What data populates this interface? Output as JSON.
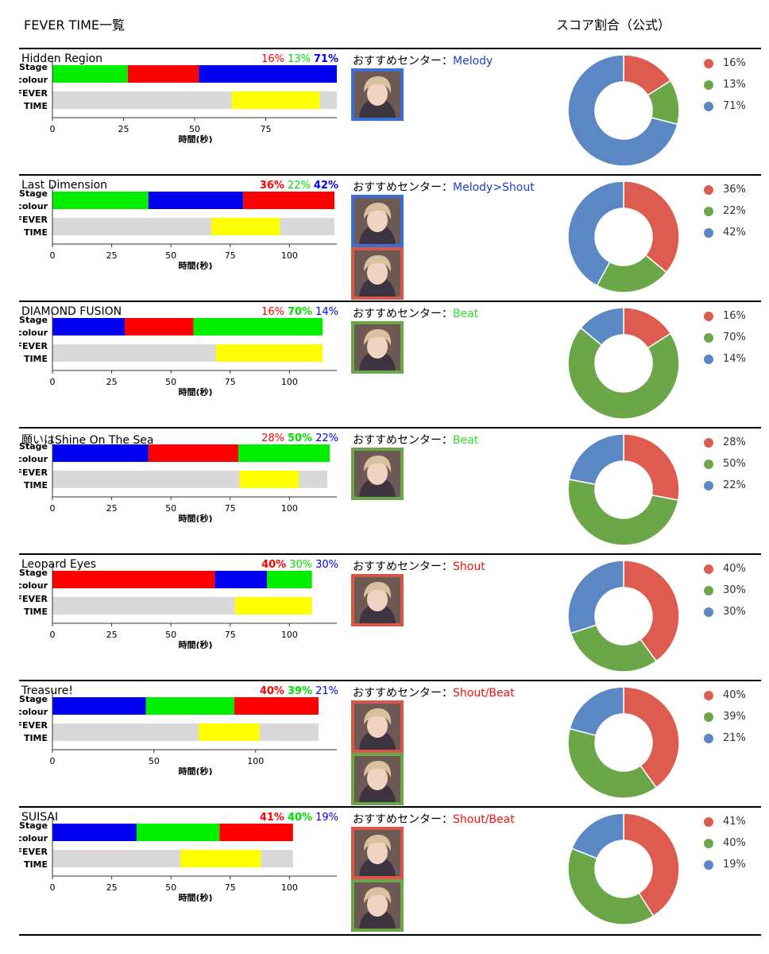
{
  "header": {
    "left": "FEVER TIME一覧",
    "right": "スコア割合（公式）"
  },
  "labels": {
    "stage": [
      "Stage",
      "colour"
    ],
    "fever": [
      "FEVER",
      "TIME"
    ],
    "xlabel": "時間(秒)",
    "rec": "おすすめセンター："
  },
  "colors": {
    "stage_red": "#ff0000",
    "stage_green": "#00ee00",
    "stage_blue": "#0000ee",
    "fever_yellow": "#ffff00",
    "fever_gray": "#d9d9d9",
    "pie_red": "#de5c4f",
    "pie_green": "#6ba648",
    "pie_blue": "#5b87c4",
    "frame_blue": "#3b6fd1",
    "frame_red": "#d9574a",
    "frame_green": "#6ba648"
  },
  "chart_data": [
    {
      "type": "bar",
      "title": "Hidden Region",
      "xlabel": "時間(秒)",
      "xticks": [
        0,
        25,
        50,
        75
      ],
      "xlim": [
        0,
        100
      ],
      "stage_segments": [
        {
          "color": "green",
          "start": 0,
          "end": 26.5
        },
        {
          "color": "red",
          "start": 26.5,
          "end": 51.5
        },
        {
          "color": "blue",
          "start": 51.5,
          "end": 100
        }
      ],
      "fever": {
        "total": 100,
        "start": 63,
        "end": 94
      },
      "percentages": [
        {
          "color": "red",
          "label": "16%",
          "bold": false
        },
        {
          "color": "green",
          "label": "13%",
          "bold": false
        },
        {
          "color": "blue",
          "label": "71%",
          "bold": true
        }
      ],
      "recommend": {
        "text": "Melody",
        "color": "blue"
      },
      "avatars": [
        "blue"
      ],
      "pie": {
        "type": "pie",
        "values": [
          16,
          13,
          71
        ],
        "labels": [
          "16%",
          "13%",
          "71%"
        ]
      }
    },
    {
      "type": "bar",
      "title": "Last Dimension",
      "xlabel": "時間(秒)",
      "xticks": [
        0,
        25,
        50,
        75,
        100
      ],
      "xlim": [
        0,
        120
      ],
      "stage_segments": [
        {
          "color": "green",
          "start": 0,
          "end": 40.5
        },
        {
          "color": "blue",
          "start": 40.5,
          "end": 80.5
        },
        {
          "color": "red",
          "start": 80.5,
          "end": 119
        }
      ],
      "fever": {
        "total": 119,
        "start": 67,
        "end": 96
      },
      "percentages": [
        {
          "color": "red",
          "label": "36%",
          "bold": true
        },
        {
          "color": "green",
          "label": "22%",
          "bold": false
        },
        {
          "color": "blue",
          "label": "42%",
          "bold": true
        }
      ],
      "recommend": {
        "text": "Melody>Shout",
        "color": "blue"
      },
      "avatars": [
        "blue",
        "red"
      ],
      "pie": {
        "type": "pie",
        "values": [
          36,
          22,
          42
        ],
        "labels": [
          "36%",
          "22%",
          "42%"
        ]
      }
    },
    {
      "type": "bar",
      "title": "DIAMOND FUSION",
      "xlabel": "時間(秒)",
      "xticks": [
        0,
        25,
        50,
        75,
        100
      ],
      "xlim": [
        0,
        120
      ],
      "stage_segments": [
        {
          "color": "blue",
          "start": 0,
          "end": 30.5
        },
        {
          "color": "red",
          "start": 30.5,
          "end": 59.5
        },
        {
          "color": "green",
          "start": 59.5,
          "end": 114
        }
      ],
      "fever": {
        "total": 114,
        "start": 69,
        "end": 114
      },
      "percentages": [
        {
          "color": "red",
          "label": "16%",
          "bold": false
        },
        {
          "color": "green",
          "label": "70%",
          "bold": true
        },
        {
          "color": "blue",
          "label": "14%",
          "bold": false
        }
      ],
      "recommend": {
        "text": "Beat",
        "color": "green"
      },
      "avatars": [
        "green"
      ],
      "pie": {
        "type": "pie",
        "values": [
          16,
          70,
          14
        ],
        "labels": [
          "16%",
          "70%",
          "14%"
        ]
      }
    },
    {
      "type": "bar",
      "title": "願いはShine On The Sea",
      "xlabel": "時間(秒)",
      "xticks": [
        0,
        25,
        50,
        75,
        100
      ],
      "xlim": [
        0,
        120
      ],
      "stage_segments": [
        {
          "color": "blue",
          "start": 0,
          "end": 40.5
        },
        {
          "color": "red",
          "start": 40.5,
          "end": 78.5
        },
        {
          "color": "green",
          "start": 78.5,
          "end": 117
        }
      ],
      "fever": {
        "total": 116,
        "start": 79,
        "end": 104
      },
      "percentages": [
        {
          "color": "red",
          "label": "28%",
          "bold": false
        },
        {
          "color": "green",
          "label": "50%",
          "bold": true
        },
        {
          "color": "blue",
          "label": "22%",
          "bold": false
        }
      ],
      "recommend": {
        "text": "Beat",
        "color": "green"
      },
      "avatars": [
        "green"
      ],
      "pie": {
        "type": "pie",
        "values": [
          28,
          50,
          22
        ],
        "labels": [
          "28%",
          "50%",
          "22%"
        ]
      }
    },
    {
      "type": "bar",
      "title": "Leopard Eyes",
      "xlabel": "時間(秒)",
      "xticks": [
        0,
        25,
        50,
        75,
        100
      ],
      "xlim": [
        0,
        120
      ],
      "stage_segments": [
        {
          "color": "red",
          "start": 0,
          "end": 68.5
        },
        {
          "color": "blue",
          "start": 68.5,
          "end": 90.5
        },
        {
          "color": "green",
          "start": 90.5,
          "end": 109.5
        }
      ],
      "fever": {
        "total": 109.5,
        "start": 77,
        "end": 109.5
      },
      "percentages": [
        {
          "color": "red",
          "label": "40%",
          "bold": true
        },
        {
          "color": "green",
          "label": "30%",
          "bold": false
        },
        {
          "color": "blue",
          "label": "30%",
          "bold": false
        }
      ],
      "recommend": {
        "text": "Shout",
        "color": "red"
      },
      "avatars": [
        "red"
      ],
      "pie": {
        "type": "pie",
        "values": [
          40,
          30,
          30
        ],
        "labels": [
          "40%",
          "30%",
          "30%"
        ]
      }
    },
    {
      "type": "bar",
      "title": "Treasure!",
      "xlabel": "時間(秒)",
      "xticks": [
        0,
        50,
        100
      ],
      "xlim": [
        0,
        140
      ],
      "stage_segments": [
        {
          "color": "blue",
          "start": 0,
          "end": 46
        },
        {
          "color": "green",
          "start": 46,
          "end": 89.5
        },
        {
          "color": "red",
          "start": 89.5,
          "end": 131
        }
      ],
      "fever": {
        "total": 131,
        "start": 72,
        "end": 102
      },
      "percentages": [
        {
          "color": "red",
          "label": "40%",
          "bold": true
        },
        {
          "color": "green",
          "label": "39%",
          "bold": true
        },
        {
          "color": "blue",
          "label": "21%",
          "bold": false
        }
      ],
      "recommend": {
        "text": "Shout/Beat",
        "color": "red"
      },
      "avatars": [
        "red",
        "green"
      ],
      "pie": {
        "type": "pie",
        "values": [
          40,
          39,
          21
        ],
        "labels": [
          "40%",
          "39%",
          "21%"
        ]
      }
    },
    {
      "type": "bar",
      "title": "SUISAI",
      "xlabel": "時間(秒)",
      "xticks": [
        0,
        25,
        50,
        75,
        100
      ],
      "xlim": [
        0,
        120
      ],
      "stage_segments": [
        {
          "color": "blue",
          "start": 0,
          "end": 35.5
        },
        {
          "color": "green",
          "start": 35.5,
          "end": 70.5
        },
        {
          "color": "red",
          "start": 70.5,
          "end": 101.5
        }
      ],
      "fever": {
        "total": 101.5,
        "start": 54,
        "end": 88
      },
      "percentages": [
        {
          "color": "red",
          "label": "41%",
          "bold": true
        },
        {
          "color": "green",
          "label": "40%",
          "bold": true
        },
        {
          "color": "blue",
          "label": "19%",
          "bold": false
        }
      ],
      "recommend": {
        "text": "Shout/Beat",
        "color": "red"
      },
      "avatars": [
        "red",
        "green"
      ],
      "pie": {
        "type": "pie",
        "values": [
          41,
          40,
          19
        ],
        "labels": [
          "41%",
          "40%",
          "19%"
        ]
      }
    }
  ]
}
